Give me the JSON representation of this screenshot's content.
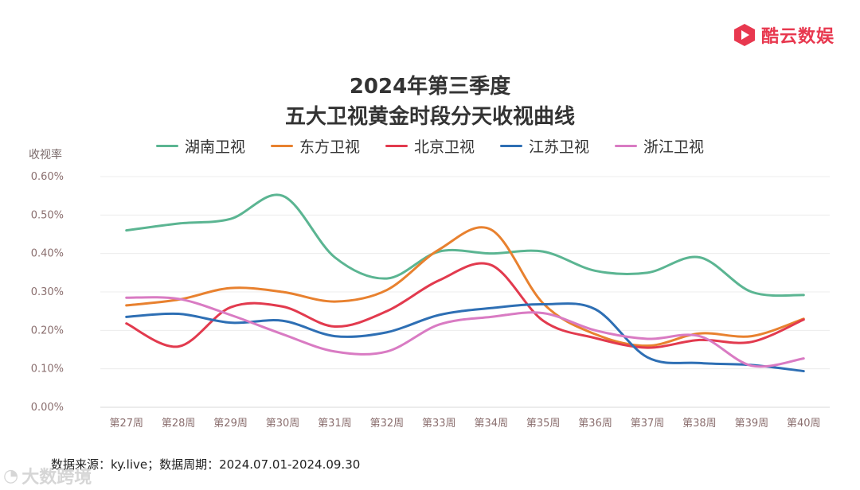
{
  "brand": {
    "name": "酷云数娱",
    "accent": "#e8384f"
  },
  "watermark": {
    "text": "大数跨境"
  },
  "chart_data": {
    "type": "line",
    "title": "2024年第三季度",
    "subtitle": "五大卫视黄金时段分天收视曲线",
    "ylabel": "收视率",
    "xlabel": "",
    "ylim": [
      0,
      0.6
    ],
    "yticks": [
      "0.00%",
      "0.10%",
      "0.20%",
      "0.30%",
      "0.40%",
      "0.50%",
      "0.60%"
    ],
    "grid": true,
    "legend_position": "top",
    "categories": [
      "第27周",
      "第28周",
      "第29周",
      "第30周",
      "第31周",
      "第32周",
      "第33周",
      "第34周",
      "第35周",
      "第36周",
      "第37周",
      "第38周",
      "第39周",
      "第40周"
    ],
    "series": [
      {
        "name": "湖南卫视",
        "color": "#5bb592",
        "values": [
          0.46,
          0.478,
          0.49,
          0.55,
          0.39,
          0.335,
          0.405,
          0.4,
          0.405,
          0.355,
          0.35,
          0.39,
          0.3,
          0.292
        ]
      },
      {
        "name": "东方卫视",
        "color": "#e8812f",
        "values": [
          0.265,
          0.28,
          0.31,
          0.3,
          0.275,
          0.305,
          0.41,
          0.462,
          0.27,
          0.19,
          0.16,
          0.192,
          0.185,
          0.23
        ]
      },
      {
        "name": "北京卫视",
        "color": "#e23a4e",
        "values": [
          0.218,
          0.158,
          0.26,
          0.262,
          0.21,
          0.25,
          0.33,
          0.37,
          0.225,
          0.18,
          0.155,
          0.175,
          0.17,
          0.228
        ]
      },
      {
        "name": "江苏卫视",
        "color": "#2e6fb4",
        "values": [
          0.235,
          0.243,
          0.22,
          0.225,
          0.185,
          0.195,
          0.24,
          0.258,
          0.268,
          0.255,
          0.13,
          0.115,
          0.11,
          0.094
        ]
      },
      {
        "name": "浙江卫视",
        "color": "#d97bc3",
        "values": [
          0.285,
          0.282,
          0.24,
          0.19,
          0.145,
          0.145,
          0.215,
          0.235,
          0.245,
          0.2,
          0.178,
          0.185,
          0.108,
          0.127
        ]
      }
    ]
  },
  "footer": {
    "source": "数据来源：ky.live；数据周期：2024.07.01-2024.09.30"
  }
}
